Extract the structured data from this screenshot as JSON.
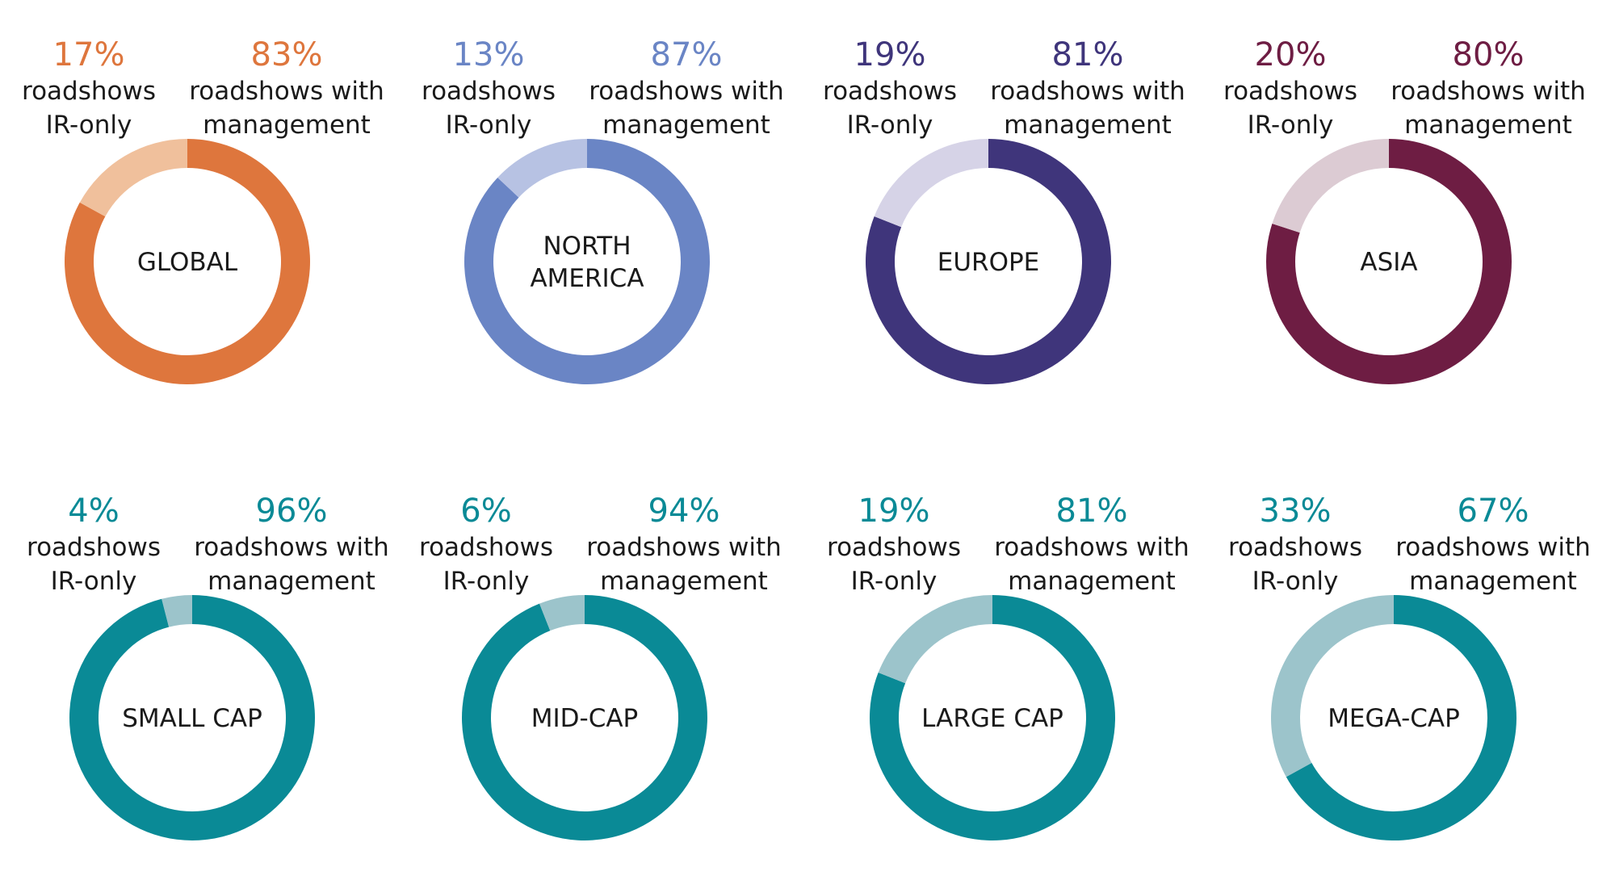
{
  "labels": {
    "ir_line1": "roadshows",
    "ir_line2": "IR-only",
    "mgmt_line1": "roadshows with",
    "mgmt_line2": "management"
  },
  "chart_data": [
    {
      "type": "pie",
      "donut": true,
      "name": "GLOBAL",
      "name_lines": [
        "GLOBAL"
      ],
      "ir_only_pct": "17%",
      "management_pct": "83%",
      "values": {
        "ir_only": 17,
        "with_management": 83
      },
      "main_color": "#DE763D",
      "light_color": "#F0C09C"
    },
    {
      "type": "pie",
      "donut": true,
      "name": "NORTH AMERICA",
      "name_lines": [
        "NORTH",
        "AMERICA"
      ],
      "ir_only_pct": "13%",
      "management_pct": "87%",
      "values": {
        "ir_only": 13,
        "with_management": 87
      },
      "main_color": "#6A85C5",
      "light_color": "#B7C2E3"
    },
    {
      "type": "pie",
      "donut": true,
      "name": "EUROPE",
      "name_lines": [
        "EUROPE"
      ],
      "ir_only_pct": "19%",
      "management_pct": "81%",
      "values": {
        "ir_only": 19,
        "with_management": 81
      },
      "main_color": "#3F357B",
      "light_color": "#D6D3E7"
    },
    {
      "type": "pie",
      "donut": true,
      "name": "ASIA",
      "name_lines": [
        "ASIA"
      ],
      "ir_only_pct": "20%",
      "management_pct": "80%",
      "values": {
        "ir_only": 20,
        "with_management": 80
      },
      "main_color": "#6E1D43",
      "light_color": "#DCCBD3"
    },
    {
      "type": "pie",
      "donut": true,
      "name": "SMALL CAP",
      "name_lines": [
        "SMALL CAP"
      ],
      "ir_only_pct": "4%",
      "management_pct": "96%",
      "values": {
        "ir_only": 4,
        "with_management": 96
      },
      "main_color": "#0A8A96",
      "light_color": "#9CC4CB"
    },
    {
      "type": "pie",
      "donut": true,
      "name": "MID-CAP",
      "name_lines": [
        "MID-CAP"
      ],
      "ir_only_pct": "6%",
      "management_pct": "94%",
      "values": {
        "ir_only": 6,
        "with_management": 94
      },
      "main_color": "#0A8A96",
      "light_color": "#9CC4CB"
    },
    {
      "type": "pie",
      "donut": true,
      "name": "LARGE CAP",
      "name_lines": [
        "LARGE CAP"
      ],
      "ir_only_pct": "19%",
      "management_pct": "81%",
      "values": {
        "ir_only": 19,
        "with_management": 81
      },
      "main_color": "#0A8A96",
      "light_color": "#9CC4CB"
    },
    {
      "type": "pie",
      "donut": true,
      "name": "MEGA-CAP",
      "name_lines": [
        "MEGA-CAP"
      ],
      "ir_only_pct": "33%",
      "management_pct": "67%",
      "values": {
        "ir_only": 33,
        "with_management": 67
      },
      "main_color": "#0A8A96",
      "light_color": "#9CC4CB"
    }
  ]
}
